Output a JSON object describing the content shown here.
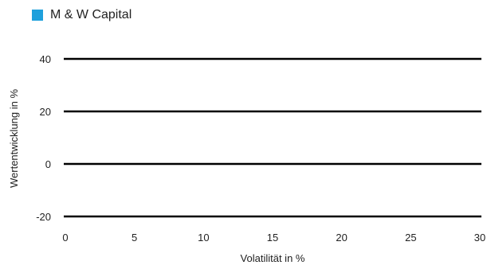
{
  "chart_data": {
    "type": "scatter",
    "title": "",
    "xlabel": "Volatilität in %",
    "ylabel": "Wertentwicklung in %",
    "xlim": [
      0,
      30
    ],
    "ylim": [
      -20,
      40
    ],
    "x_ticks": [
      0,
      5,
      10,
      15,
      20,
      25,
      30
    ],
    "y_ticks": [
      40,
      20,
      0,
      -20
    ],
    "grid": "horizontal",
    "legend_position": "top-left",
    "series": [
      {
        "name": "M & W Capital",
        "color": "#1EA0DC",
        "points": []
      }
    ]
  },
  "colors": {
    "gridline": "#000000",
    "text": "#222222"
  }
}
